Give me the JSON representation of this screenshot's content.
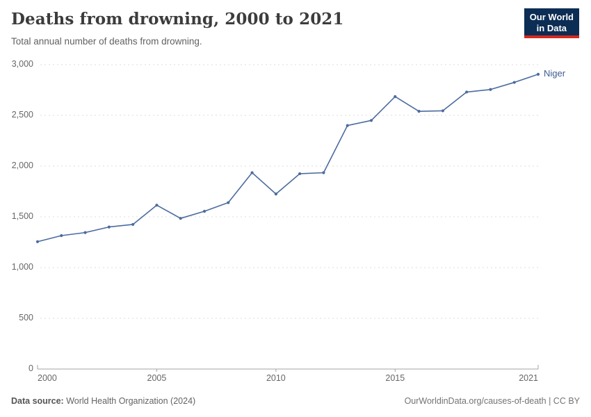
{
  "header": {
    "title": "Deaths from drowning, 2000 to 2021",
    "subtitle": "Total annual number of deaths from drowning."
  },
  "logo": {
    "line1": "Our World",
    "line2": "in Data",
    "bg_color": "#0c2d54",
    "accent_color": "#d6281e"
  },
  "chart_data": {
    "type": "line",
    "title": "Deaths from drowning, 2000 to 2021",
    "subtitle": "Total annual number of deaths from drowning.",
    "x": [
      2000,
      2001,
      2002,
      2003,
      2004,
      2005,
      2006,
      2007,
      2008,
      2009,
      2010,
      2011,
      2012,
      2013,
      2014,
      2015,
      2016,
      2017,
      2018,
      2019,
      2020,
      2021
    ],
    "series": [
      {
        "name": "Niger",
        "color": "#4c6b9e",
        "values": [
          1255,
          1315,
          1345,
          1400,
          1425,
          1615,
          1485,
          1555,
          1640,
          1935,
          1725,
          1925,
          1935,
          2400,
          2450,
          2685,
          2540,
          2545,
          2730,
          2755,
          2825,
          2905
        ]
      }
    ],
    "xlabel": "",
    "ylabel": "",
    "xlim": [
      2000,
      2021
    ],
    "ylim": [
      0,
      3000
    ],
    "yticks": [
      {
        "value": 0,
        "label": "0"
      },
      {
        "value": 500,
        "label": "500"
      },
      {
        "value": 1000,
        "label": "1,000"
      },
      {
        "value": 1500,
        "label": "1,500"
      },
      {
        "value": 2000,
        "label": "2,000"
      },
      {
        "value": 2500,
        "label": "2,500"
      },
      {
        "value": 3000,
        "label": "3,000"
      }
    ],
    "xticks": [
      {
        "value": 2000,
        "label": "2000"
      },
      {
        "value": 2005,
        "label": "2005"
      },
      {
        "value": 2010,
        "label": "2010"
      },
      {
        "value": 2015,
        "label": "2015"
      },
      {
        "value": 2021,
        "label": "2021"
      }
    ],
    "grid": "horizontal-dashed",
    "grid_color": "#dcdcdc",
    "axis_color": "#a3a3a3",
    "legend_position": "end-of-line-label"
  },
  "footer": {
    "source_label": "Data source:",
    "source_value": "World Health Organization (2024)",
    "credit": "OurWorldinData.org/causes-of-death | CC BY"
  }
}
